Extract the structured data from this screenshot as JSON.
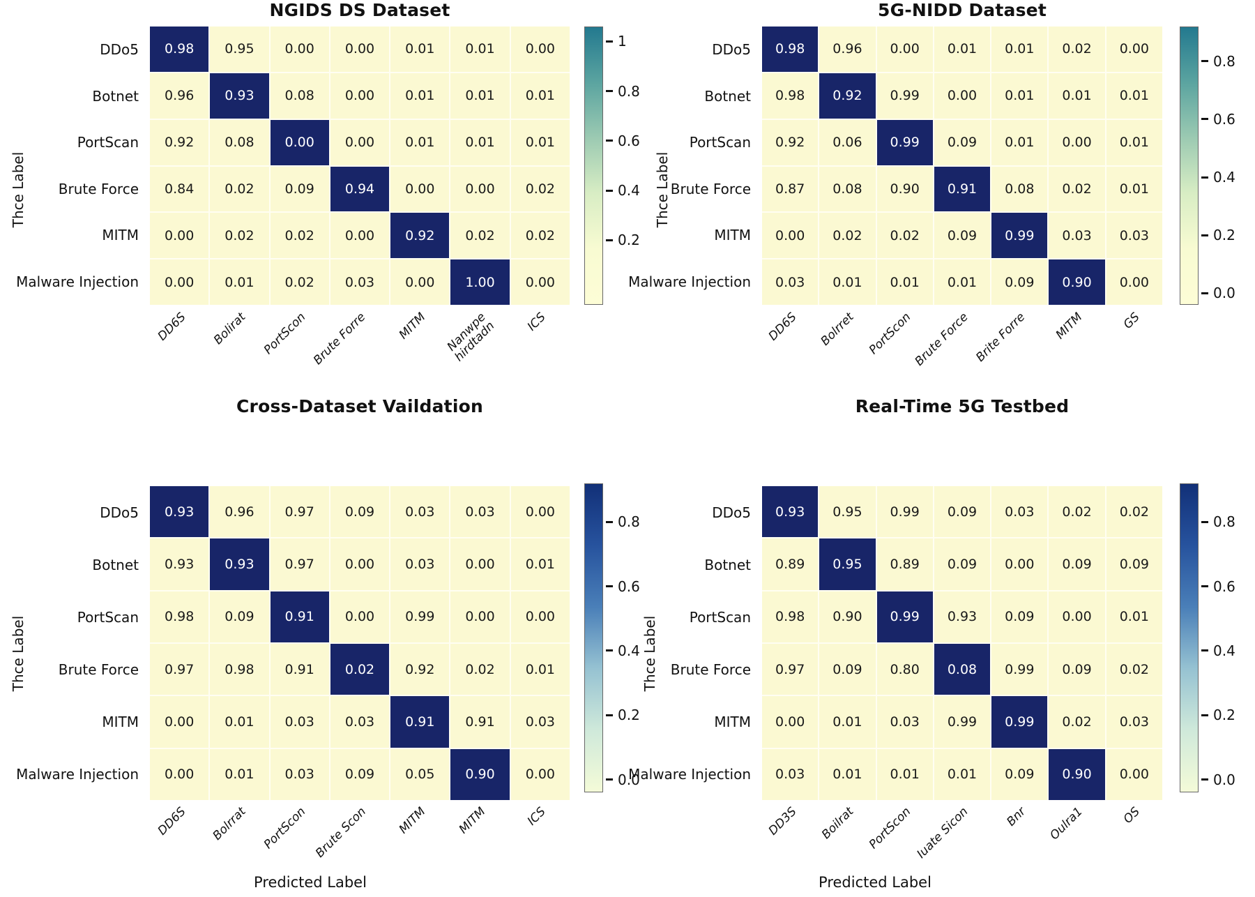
{
  "figure": {
    "ylabel": "Thce Label",
    "xlabel": "Predicted Label",
    "colors": {
      "cell_dark": "#182568",
      "cell_light": "#fbf9d2",
      "grid_line": "#fffef2"
    }
  },
  "chart_data": [
    {
      "type": "heatmap",
      "title": "NGIDS DS Dataset",
      "position": "top-left",
      "rows": [
        "DDo5",
        "Botnet",
        "PortScan",
        "Brute Force",
        "MITM",
        "Malware Injection"
      ],
      "cols": [
        "DD6S",
        "Bolirat",
        "PortScon",
        "Brute Forre",
        "MITM",
        "Nanwpe\nhirdtadn",
        "ICS"
      ],
      "values": [
        [
          "0.98",
          "0.95",
          "0.00",
          "0.00",
          "0.01",
          "0.01",
          "0.00"
        ],
        [
          "0.96",
          "0.93",
          "0.08",
          "0.00",
          "0.01",
          "0.01",
          "0.01"
        ],
        [
          "0.92",
          "0.08",
          "0.00",
          "0.00",
          "0.01",
          "0.01",
          "0.01"
        ],
        [
          "0.84",
          "0.02",
          "0.09",
          "0.94",
          "0.00",
          "0.00",
          "0.02"
        ],
        [
          "0.00",
          "0.02",
          "0.02",
          "0.00",
          "0.92",
          "0.02",
          "0.02"
        ],
        [
          "0.00",
          "0.01",
          "0.02",
          "0.03",
          "0.00",
          "1.00",
          "0.00"
        ]
      ],
      "highlight": "diagonal",
      "colorbar": {
        "ticks": [
          "1",
          "0.8",
          "0.6",
          "0.4",
          "0.2"
        ],
        "scale_top": 1.06,
        "scale_bottom": -0.06,
        "gradient": [
          "#23798f",
          "#5ba4a0",
          "#9ccab2",
          "#d8edc4",
          "#f8fbd2",
          "#fdfdd6"
        ]
      }
    },
    {
      "type": "heatmap",
      "title": "5G-NIDD Dataset",
      "position": "top-right",
      "rows": [
        "DDo5",
        "Botnet",
        "PortScan",
        "Brute Force",
        "MITM",
        "Malware Injection"
      ],
      "cols": [
        "DD6S",
        "Bolrret",
        "PortScon",
        "Brute Force",
        "Brite Forre",
        "MITM",
        "GS"
      ],
      "values": [
        [
          "0.98",
          "0.96",
          "0.00",
          "0.01",
          "0.01",
          "0.02",
          "0.00"
        ],
        [
          "0.98",
          "0.92",
          "0.99",
          "0.00",
          "0.01",
          "0.01",
          "0.01"
        ],
        [
          "0.92",
          "0.06",
          "0.99",
          "0.09",
          "0.01",
          "0.00",
          "0.01"
        ],
        [
          "0.87",
          "0.08",
          "0.90",
          "0.91",
          "0.08",
          "0.02",
          "0.01"
        ],
        [
          "0.00",
          "0.02",
          "0.02",
          "0.09",
          "0.99",
          "0.03",
          "0.03"
        ],
        [
          "0.03",
          "0.01",
          "0.01",
          "0.01",
          "0.09",
          "0.90",
          "0.00"
        ]
      ],
      "highlight": "diagonal",
      "colorbar": {
        "ticks": [
          "0.8",
          "0.6",
          "0.4",
          "0.2",
          "0.0"
        ],
        "scale_top": 0.92,
        "scale_bottom": -0.04,
        "gradient": [
          "#23798f",
          "#5ba4a0",
          "#9ccab2",
          "#d8edc4",
          "#f8fbd2",
          "#fdfdd6"
        ]
      }
    },
    {
      "type": "heatmap",
      "title": "Cross-Dataset Vaildation",
      "position": "bottom-left",
      "rows": [
        "DDo5",
        "Botnet",
        "PortScan",
        "Brute Force",
        "MITM",
        "Malware Injection"
      ],
      "cols": [
        "DD6S",
        "Bolrrat",
        "PortScon",
        "Brute Scon",
        "MITM",
        "MITM",
        "ICS"
      ],
      "values": [
        [
          "0.93",
          "0.96",
          "0.97",
          "0.09",
          "0.03",
          "0.03",
          "0.00"
        ],
        [
          "0.93",
          "0.93",
          "0.97",
          "0.00",
          "0.03",
          "0.00",
          "0.01"
        ],
        [
          "0.98",
          "0.09",
          "0.91",
          "0.00",
          "0.99",
          "0.00",
          "0.00"
        ],
        [
          "0.97",
          "0.98",
          "0.91",
          "0.02",
          "0.92",
          "0.02",
          "0.01"
        ],
        [
          "0.00",
          "0.01",
          "0.03",
          "0.03",
          "0.91",
          "0.91",
          "0.03"
        ],
        [
          "0.00",
          "0.01",
          "0.03",
          "0.09",
          "0.05",
          "0.90",
          "0.00"
        ]
      ],
      "highlight": "diagonal",
      "colorbar": {
        "ticks": [
          "0.8",
          "0.6",
          "0.4",
          "0.2",
          "0.0"
        ],
        "scale_top": 0.92,
        "scale_bottom": -0.04,
        "gradient": [
          "#123078",
          "#27539e",
          "#4a7fb8",
          "#96c2d2",
          "#cfe9da",
          "#f4fbd8"
        ]
      }
    },
    {
      "type": "heatmap",
      "title": "Real-Time 5G Testbed",
      "position": "bottom-right",
      "rows": [
        "DDo5",
        "Botnet",
        "PortScan",
        "Brute Force",
        "MITM",
        "Malware Injection"
      ],
      "cols": [
        "DD3S",
        "Boilrat",
        "PortScon",
        "Iuate Sicon",
        "Bnr",
        "Oulra1",
        "OS"
      ],
      "values": [
        [
          "0.93",
          "0.95",
          "0.99",
          "0.09",
          "0.03",
          "0.02",
          "0.02"
        ],
        [
          "0.89",
          "0.95",
          "0.89",
          "0.09",
          "0.00",
          "0.09",
          "0.09"
        ],
        [
          "0.98",
          "0.90",
          "0.99",
          "0.93",
          "0.09",
          "0.00",
          "0.01"
        ],
        [
          "0.97",
          "0.09",
          "0.80",
          "0.08",
          "0.99",
          "0.09",
          "0.02"
        ],
        [
          "0.00",
          "0.01",
          "0.03",
          "0.99",
          "0.99",
          "0.02",
          "0.03"
        ],
        [
          "0.03",
          "0.01",
          "0.01",
          "0.01",
          "0.09",
          "0.90",
          "0.00"
        ]
      ],
      "highlight": "diagonal",
      "colorbar": {
        "ticks": [
          "0.8",
          "0.6",
          "0.4",
          "0.2",
          "0.0"
        ],
        "scale_top": 0.92,
        "scale_bottom": -0.04,
        "gradient": [
          "#123078",
          "#27539e",
          "#4a7fb8",
          "#96c2d2",
          "#cfe9da",
          "#f4fbd8"
        ]
      }
    }
  ]
}
